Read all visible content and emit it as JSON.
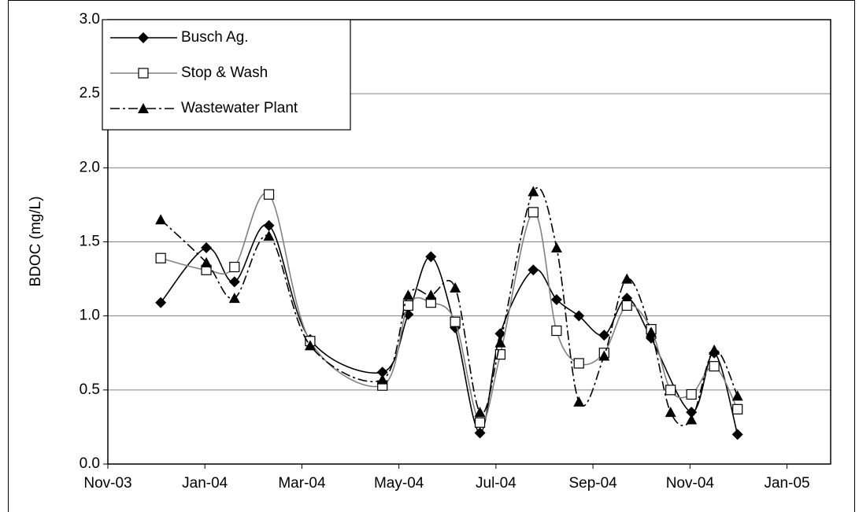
{
  "chart_data": {
    "type": "line",
    "ylabel": "BDOC (mg/L)",
    "xlim": [
      0,
      14.9
    ],
    "xticks": [
      {
        "value": 0,
        "label": "Nov-03"
      },
      {
        "value": 2,
        "label": "Jan-04"
      },
      {
        "value": 4,
        "label": "Mar-04"
      },
      {
        "value": 6,
        "label": "May-04"
      },
      {
        "value": 8,
        "label": "Jul-04"
      },
      {
        "value": 10,
        "label": "Sep-04"
      },
      {
        "value": 12,
        "label": "Nov-04"
      },
      {
        "value": 14,
        "label": "Jan-05"
      }
    ],
    "ylim": [
      0,
      3
    ],
    "yticks": [
      {
        "value": 0,
        "label": "0.0"
      },
      {
        "value": 0.5,
        "label": "0.5"
      },
      {
        "value": 1,
        "label": "1.0"
      },
      {
        "value": 1.5,
        "label": "1.5"
      },
      {
        "value": 2,
        "label": "2.0"
      },
      {
        "value": 2.5,
        "label": "2.5"
      },
      {
        "value": 3,
        "label": "3.0"
      }
    ],
    "grid": true,
    "legend": "top-left",
    "series": [
      {
        "name": "Busch Ag.",
        "color": "#000000",
        "marker": "diamond",
        "dash": "solid",
        "x": [
          1.09,
          2.03,
          2.61,
          3.32,
          4.17,
          5.66,
          6.19,
          6.66,
          7.16,
          7.67,
          8.09,
          8.77,
          9.25,
          9.71,
          10.23,
          10.7,
          11.2,
          12.03,
          12.5,
          12.98
        ],
        "values": [
          1.09,
          1.46,
          1.23,
          1.61,
          0.84,
          0.62,
          1.01,
          1.4,
          0.92,
          0.21,
          0.88,
          1.31,
          1.11,
          1.0,
          0.87,
          1.12,
          0.85,
          0.35,
          0.75,
          0.2
        ]
      },
      {
        "name": "Stop & Wash",
        "color": "#808080",
        "marker": "square",
        "dash": "solid",
        "x": [
          1.09,
          2.03,
          2.61,
          3.32,
          4.17,
          5.66,
          6.19,
          6.66,
          7.16,
          7.67,
          8.09,
          8.77,
          9.25,
          9.71,
          10.23,
          10.7,
          11.2,
          11.6,
          12.03,
          12.5,
          12.98
        ],
        "values": [
          1.39,
          1.31,
          1.33,
          1.82,
          0.83,
          0.53,
          1.07,
          1.09,
          0.96,
          0.28,
          0.74,
          1.7,
          0.9,
          0.68,
          0.75,
          1.07,
          0.91,
          0.5,
          0.47,
          0.66,
          0.37
        ]
      },
      {
        "name": "Wastewater Plant",
        "color": "#000000",
        "marker": "triangle",
        "dash": "dashdot",
        "x": [
          1.09,
          2.03,
          2.61,
          3.32,
          4.17,
          5.66,
          6.19,
          6.66,
          7.16,
          7.67,
          8.09,
          8.77,
          9.25,
          9.71,
          10.23,
          10.7,
          11.2,
          11.6,
          12.03,
          12.5,
          12.98
        ],
        "values": [
          1.65,
          1.36,
          1.12,
          1.54,
          0.8,
          0.57,
          1.14,
          1.14,
          1.19,
          0.35,
          0.82,
          1.84,
          1.46,
          0.42,
          0.73,
          1.25,
          0.89,
          0.35,
          0.3,
          0.77,
          0.46
        ]
      }
    ]
  }
}
